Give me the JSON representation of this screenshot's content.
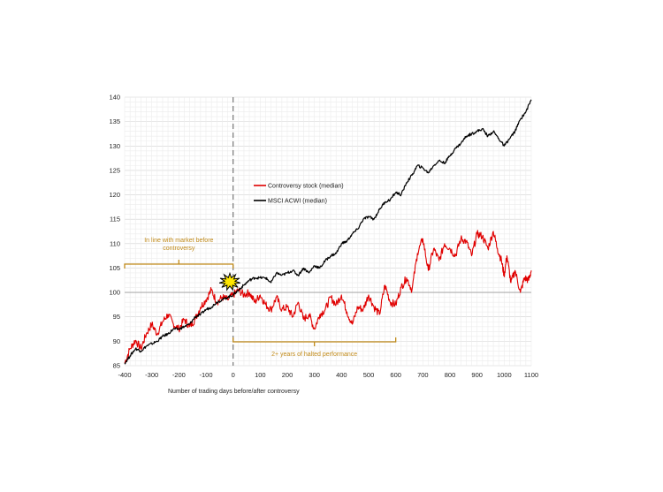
{
  "chart_data": {
    "type": "line",
    "title": "",
    "xlabel": "Number of trading days before/after controversy",
    "ylabel": "",
    "xlim": [
      -400,
      1100
    ],
    "ylim": [
      85,
      140
    ],
    "x_ticks": [
      -400,
      -300,
      -200,
      -100,
      0,
      100,
      200,
      300,
      400,
      500,
      600,
      700,
      800,
      900,
      1000,
      1100
    ],
    "y_ticks": [
      85,
      90,
      95,
      100,
      105,
      110,
      115,
      120,
      125,
      130,
      135,
      140
    ],
    "grid": true,
    "legend_position": "upper-middle",
    "event_marker": {
      "x": 0,
      "label": "",
      "icon": "starburst-explosion"
    },
    "series": [
      {
        "name": "Controversy stock (median)",
        "color": "#e00000",
        "points": [
          [
            -400,
            85.5
          ],
          [
            -380,
            88.5
          ],
          [
            -360,
            90.2
          ],
          [
            -340,
            88.5
          ],
          [
            -320,
            91.5
          ],
          [
            -300,
            93.5
          ],
          [
            -280,
            91.5
          ],
          [
            -260,
            94.0
          ],
          [
            -240,
            95.5
          ],
          [
            -220,
            93.5
          ],
          [
            -200,
            92.5
          ],
          [
            -180,
            94.5
          ],
          [
            -160,
            93.0
          ],
          [
            -140,
            94.5
          ],
          [
            -120,
            97.0
          ],
          [
            -100,
            98.5
          ],
          [
            -80,
            100.5
          ],
          [
            -60,
            98.0
          ],
          [
            -40,
            99.0
          ],
          [
            -20,
            98.5
          ],
          [
            0,
            99.5
          ],
          [
            20,
            100.5
          ],
          [
            40,
            99.5
          ],
          [
            60,
            100.0
          ],
          [
            80,
            98.0
          ],
          [
            100,
            99.5
          ],
          [
            120,
            97.5
          ],
          [
            140,
            96.5
          ],
          [
            160,
            99.0
          ],
          [
            180,
            96.5
          ],
          [
            200,
            97.0
          ],
          [
            220,
            95.0
          ],
          [
            240,
            98.0
          ],
          [
            260,
            94.5
          ],
          [
            280,
            95.5
          ],
          [
            300,
            92.5
          ],
          [
            320,
            95.5
          ],
          [
            340,
            96.5
          ],
          [
            360,
            99.0
          ],
          [
            380,
            97.5
          ],
          [
            400,
            99.5
          ],
          [
            420,
            96.0
          ],
          [
            440,
            93.5
          ],
          [
            460,
            97.0
          ],
          [
            480,
            96.5
          ],
          [
            500,
            99.5
          ],
          [
            520,
            97.0
          ],
          [
            540,
            95.5
          ],
          [
            560,
            101.5
          ],
          [
            580,
            98.0
          ],
          [
            600,
            97.5
          ],
          [
            620,
            101.0
          ],
          [
            640,
            103.0
          ],
          [
            660,
            100.5
          ],
          [
            680,
            108.0
          ],
          [
            700,
            111.0
          ],
          [
            720,
            104.5
          ],
          [
            740,
            109.0
          ],
          [
            760,
            106.5
          ],
          [
            780,
            110.0
          ],
          [
            800,
            109.0
          ],
          [
            820,
            107.5
          ],
          [
            840,
            111.0
          ],
          [
            860,
            110.5
          ],
          [
            880,
            107.5
          ],
          [
            900,
            112.0
          ],
          [
            920,
            111.5
          ],
          [
            940,
            109.0
          ],
          [
            960,
            112.5
          ],
          [
            975,
            109.0
          ],
          [
            990,
            106.5
          ],
          [
            1000,
            103.5
          ],
          [
            1010,
            107.5
          ],
          [
            1025,
            102.0
          ],
          [
            1040,
            104.5
          ],
          [
            1060,
            100.0
          ],
          [
            1075,
            103.0
          ],
          [
            1090,
            102.5
          ],
          [
            1100,
            104.5
          ]
        ]
      },
      {
        "name": "MSCI ACWI (median)",
        "color": "#000000",
        "points": [
          [
            -400,
            85.5
          ],
          [
            -380,
            87.0
          ],
          [
            -360,
            88.5
          ],
          [
            -340,
            88.0
          ],
          [
            -320,
            89.0
          ],
          [
            -300,
            89.5
          ],
          [
            -280,
            90.0
          ],
          [
            -260,
            91.0
          ],
          [
            -240,
            91.5
          ],
          [
            -220,
            92.5
          ],
          [
            -200,
            92.5
          ],
          [
            -180,
            93.0
          ],
          [
            -160,
            93.5
          ],
          [
            -140,
            95.0
          ],
          [
            -120,
            95.5
          ],
          [
            -100,
            96.5
          ],
          [
            -80,
            97.0
          ],
          [
            -60,
            98.0
          ],
          [
            -40,
            98.5
          ],
          [
            -20,
            99.0
          ],
          [
            0,
            99.5
          ],
          [
            20,
            100.5
          ],
          [
            40,
            101.5
          ],
          [
            60,
            102.5
          ],
          [
            80,
            103.0
          ],
          [
            100,
            103.0
          ],
          [
            120,
            103.0
          ],
          [
            140,
            102.0
          ],
          [
            160,
            104.0
          ],
          [
            180,
            103.5
          ],
          [
            200,
            104.0
          ],
          [
            220,
            104.5
          ],
          [
            240,
            103.5
          ],
          [
            260,
            105.0
          ],
          [
            280,
            104.0
          ],
          [
            300,
            105.5
          ],
          [
            320,
            105.0
          ],
          [
            340,
            106.5
          ],
          [
            360,
            107.5
          ],
          [
            380,
            108.0
          ],
          [
            400,
            110.0
          ],
          [
            420,
            110.5
          ],
          [
            440,
            112.0
          ],
          [
            460,
            113.0
          ],
          [
            480,
            115.0
          ],
          [
            500,
            115.5
          ],
          [
            520,
            115.0
          ],
          [
            540,
            117.0
          ],
          [
            560,
            118.5
          ],
          [
            580,
            119.0
          ],
          [
            600,
            120.5
          ],
          [
            620,
            120.0
          ],
          [
            640,
            122.5
          ],
          [
            660,
            124.0
          ],
          [
            680,
            126.0
          ],
          [
            700,
            125.5
          ],
          [
            720,
            124.5
          ],
          [
            740,
            126.0
          ],
          [
            760,
            127.0
          ],
          [
            780,
            126.5
          ],
          [
            800,
            128.0
          ],
          [
            820,
            129.5
          ],
          [
            840,
            130.5
          ],
          [
            860,
            132.0
          ],
          [
            880,
            132.5
          ],
          [
            900,
            133.0
          ],
          [
            920,
            133.5
          ],
          [
            940,
            132.0
          ],
          [
            960,
            133.0
          ],
          [
            980,
            131.5
          ],
          [
            1000,
            130.0
          ],
          [
            1020,
            131.5
          ],
          [
            1040,
            133.0
          ],
          [
            1060,
            135.5
          ],
          [
            1080,
            137.0
          ],
          [
            1100,
            139.5
          ]
        ]
      }
    ],
    "annotations": [
      {
        "id": "before",
        "text_lines": [
          "In line with market before",
          "controversy"
        ],
        "x_range": [
          -400,
          0
        ],
        "y": 105.5,
        "color": "#c08a1a"
      },
      {
        "id": "after",
        "text_lines": [
          "2+ years of halted performance"
        ],
        "x_range": [
          0,
          600
        ],
        "y": 90,
        "color": "#c08a1a"
      }
    ]
  }
}
